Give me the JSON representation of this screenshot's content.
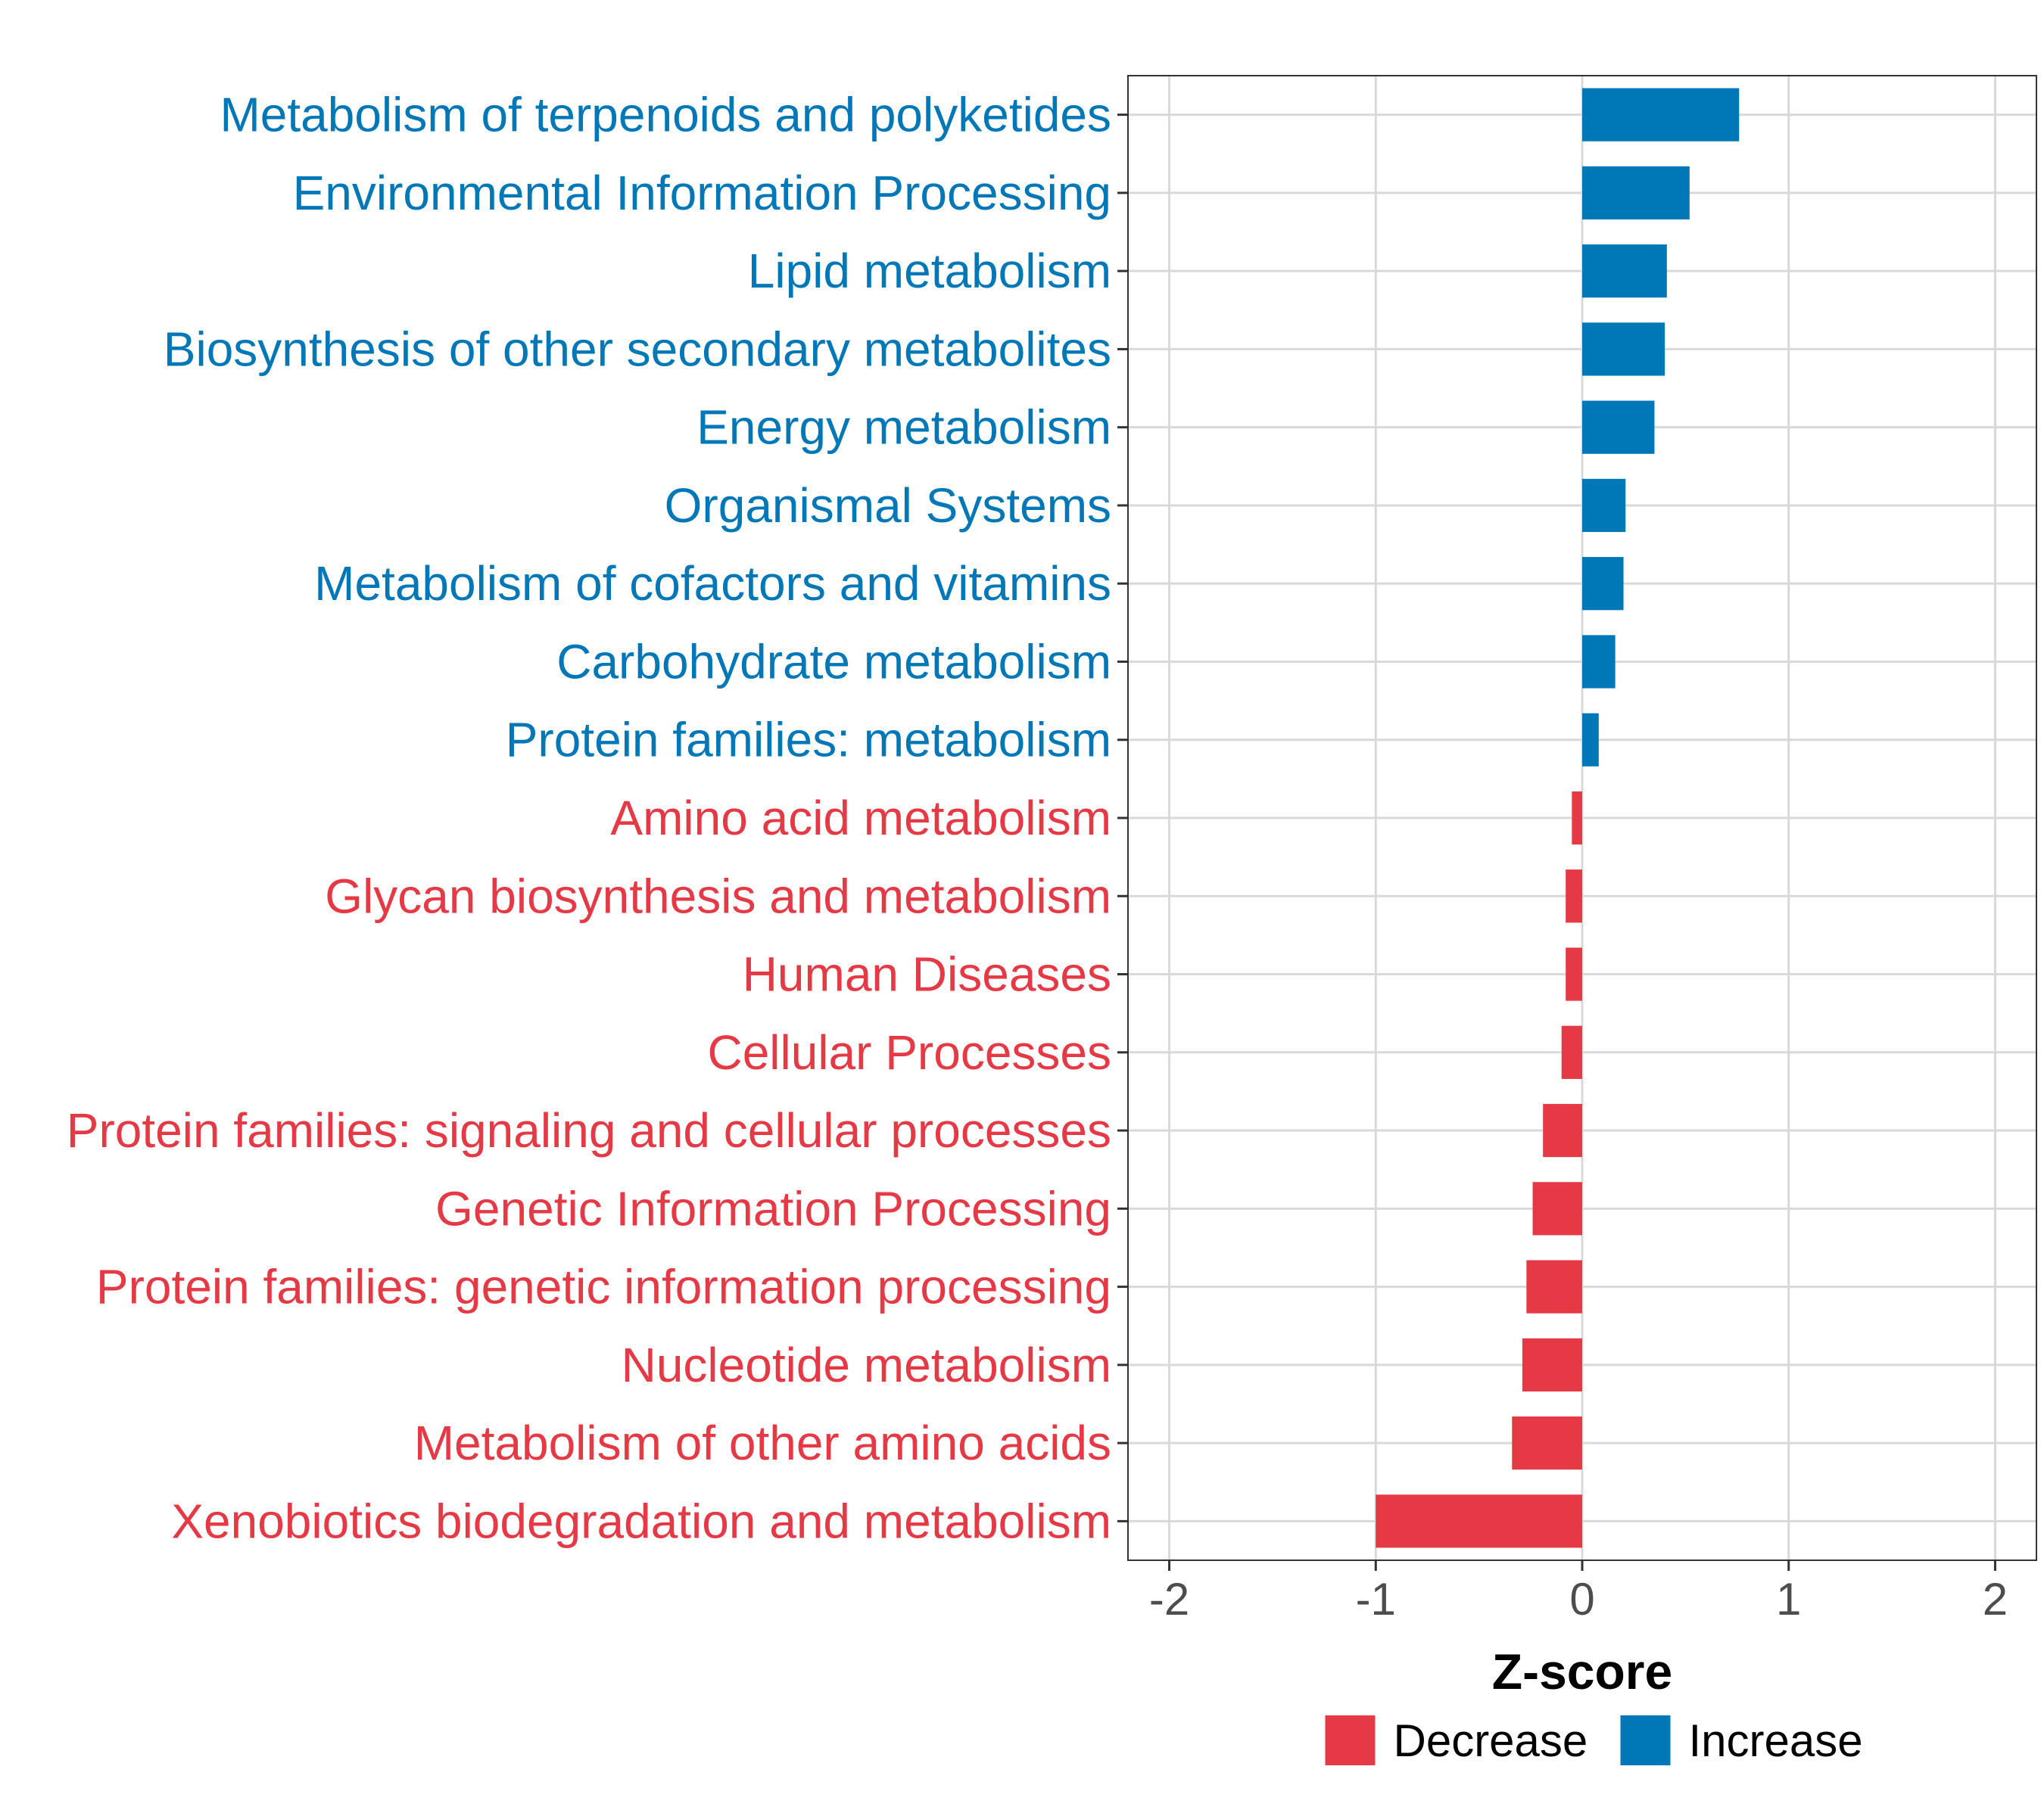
{
  "chart_data": {
    "type": "bar",
    "orientation": "horizontal",
    "categories": [
      "Metabolism of terpenoids and polyketides",
      "Environmental Information Processing",
      "Lipid metabolism",
      "Biosynthesis of other secondary metabolites",
      "Energy metabolism",
      "Organismal Systems",
      "Metabolism of cofactors and vitamins",
      "Carbohydrate metabolism",
      "Protein families: metabolism",
      "Amino acid metabolism",
      "Glycan biosynthesis and metabolism",
      "Human Diseases",
      "Cellular Processes",
      "Protein families: signaling and cellular processes",
      "Genetic Information Processing",
      "Protein families: genetic information processing",
      "Nucleotide metabolism",
      "Metabolism of other amino acids",
      "Xenobiotics biodegradation and metabolism"
    ],
    "values": [
      0.76,
      0.52,
      0.41,
      0.4,
      0.35,
      0.21,
      0.2,
      0.16,
      0.08,
      -0.05,
      -0.08,
      -0.08,
      -0.1,
      -0.19,
      -0.24,
      -0.27,
      -0.29,
      -0.34,
      -1.0
    ],
    "xlabel": "Z-score",
    "ylabel": "",
    "xlim": [
      -2.2,
      2.2
    ],
    "xticks": [
      "-2",
      "-1",
      "0",
      "1",
      "2"
    ],
    "xtick_values": [
      -2,
      -1,
      0,
      1,
      2
    ],
    "grid": true,
    "legend": {
      "position": "bottom",
      "entries": [
        {
          "label": "Decrease",
          "color": "#e63946"
        },
        {
          "label": "Increase",
          "color": "#0077b6"
        }
      ]
    },
    "colors": {
      "increase": "#0077b6",
      "decrease": "#e63946",
      "grid": "#d9d9d9",
      "panel_border": "#333333"
    }
  }
}
